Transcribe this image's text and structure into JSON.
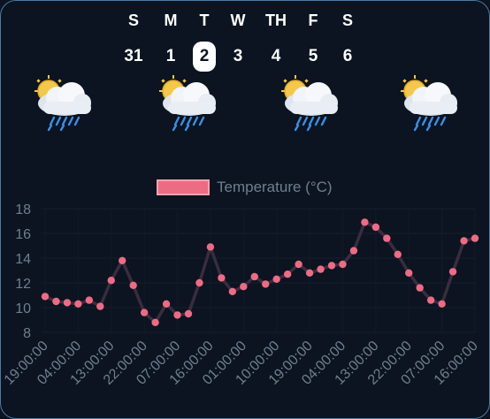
{
  "week": {
    "days": [
      {
        "dow": "S",
        "date": "31",
        "selected": false
      },
      {
        "dow": "M",
        "date": "1",
        "selected": false
      },
      {
        "dow": "T",
        "date": "2",
        "selected": true
      },
      {
        "dow": "W",
        "date": "3",
        "selected": false
      },
      {
        "dow": "TH",
        "date": "4",
        "selected": false
      },
      {
        "dow": "F",
        "date": "5",
        "selected": false
      },
      {
        "dow": "S",
        "date": "6",
        "selected": false
      }
    ]
  },
  "forecast_icons": [
    {
      "icon": "sun-behind-rain-cloud-icon"
    },
    {
      "icon": "sun-behind-rain-cloud-icon"
    },
    {
      "icon": "sun-behind-rain-cloud-icon"
    },
    {
      "icon": "sun-behind-rain-cloud-icon"
    }
  ],
  "colors": {
    "line": "#3a2c3e",
    "point": "#ee6b84",
    "legend": "#ee6b84"
  },
  "chart_data": {
    "type": "line",
    "legend_label": "Temperature (°C)",
    "legend_position": "top",
    "ylim": [
      8,
      18
    ],
    "yticks": [
      "8",
      "10",
      "12",
      "14",
      "16",
      "18"
    ],
    "xtick_labels": [
      "19:00:00",
      "04:00:00",
      "13:00:00",
      "22:00:00",
      "07:00:00",
      "16:00:00",
      "01:00:00",
      "10:00:00",
      "19:00:00",
      "04:00:00",
      "13:00:00",
      "22:00:00",
      "07:00:00",
      "16:00:00"
    ],
    "series": [
      {
        "name": "Temperature (°C)",
        "values": [
          10.9,
          10.5,
          10.4,
          10.3,
          10.6,
          10.1,
          12.2,
          13.8,
          11.8,
          9.6,
          8.8,
          10.3,
          9.4,
          9.5,
          12.0,
          14.9,
          12.4,
          11.3,
          11.7,
          12.5,
          11.9,
          12.3,
          12.7,
          13.5,
          12.8,
          13.1,
          13.4,
          13.5,
          14.6,
          16.9,
          16.5,
          15.6,
          14.3,
          12.8,
          11.6,
          10.6,
          10.3,
          12.9,
          15.4,
          15.6
        ]
      }
    ]
  }
}
